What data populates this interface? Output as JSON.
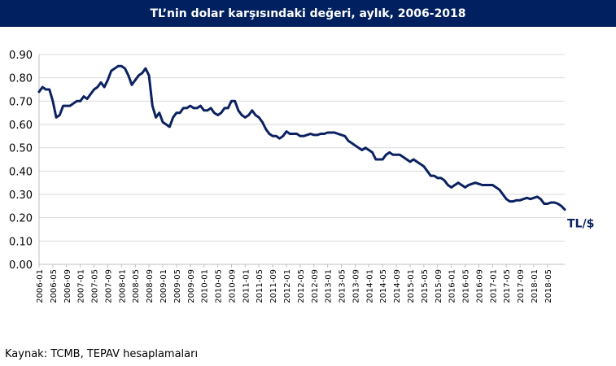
{
  "title": "TL’nin dolar karşısındaki değeri, aylık, 2006-2018",
  "source": "Kaynak: TCMB, TEPAV hesaplamaları",
  "colors": {
    "title_bg": "#002060",
    "line": "#0b2160",
    "grid": "#d9d9d9"
  },
  "chart_data": {
    "type": "line",
    "title": "TL’nin dolar karşısındaki değeri, aylık, 2006-2018",
    "series_label": "TL/$",
    "ylim": [
      0,
      0.9
    ],
    "y_ticks": [
      "0.00",
      "0.10",
      "0.20",
      "0.30",
      "0.40",
      "0.50",
      "0.60",
      "0.70",
      "0.80",
      "0.90"
    ],
    "grid": true,
    "legend": "label at end of line",
    "x_tick_labels": [
      "2006-01",
      "2006-05",
      "2006-09",
      "2007-01",
      "2007-05",
      "2007-09",
      "2008-01",
      "2008-05",
      "2008-09",
      "2009-01",
      "2009-05",
      "2009-09",
      "2010-01",
      "2010-05",
      "2010-09",
      "2011-01",
      "2011-05",
      "2011-09",
      "2012-01",
      "2012-05",
      "2012-09",
      "2013-01",
      "2013-05",
      "2013-09",
      "2014-01",
      "2014-05",
      "2014-09",
      "2015-01",
      "2015-05",
      "2015-09",
      "2016-01",
      "2016-05",
      "2016-09",
      "2017-01",
      "2017-05",
      "2017-09",
      "2018-01",
      "2018-05"
    ],
    "x_start": "2006-01",
    "x_end": "2018-05",
    "values": [
      0.74,
      0.76,
      0.75,
      0.75,
      0.7,
      0.63,
      0.64,
      0.68,
      0.68,
      0.68,
      0.69,
      0.7,
      0.7,
      0.72,
      0.71,
      0.73,
      0.75,
      0.76,
      0.78,
      0.76,
      0.79,
      0.83,
      0.84,
      0.85,
      0.85,
      0.84,
      0.81,
      0.77,
      0.79,
      0.81,
      0.82,
      0.84,
      0.81,
      0.68,
      0.63,
      0.65,
      0.61,
      0.6,
      0.59,
      0.63,
      0.65,
      0.65,
      0.67,
      0.67,
      0.68,
      0.67,
      0.67,
      0.68,
      0.66,
      0.66,
      0.67,
      0.65,
      0.64,
      0.65,
      0.67,
      0.67,
      0.7,
      0.7,
      0.66,
      0.64,
      0.63,
      0.64,
      0.66,
      0.64,
      0.63,
      0.61,
      0.58,
      0.56,
      0.55,
      0.55,
      0.54,
      0.55,
      0.57,
      0.56,
      0.56,
      0.56,
      0.55,
      0.55,
      0.555,
      0.56,
      0.555,
      0.555,
      0.56,
      0.56,
      0.565,
      0.565,
      0.565,
      0.56,
      0.555,
      0.55,
      0.53,
      0.52,
      0.51,
      0.5,
      0.49,
      0.5,
      0.49,
      0.48,
      0.45,
      0.45,
      0.45,
      0.47,
      0.48,
      0.47,
      0.47,
      0.47,
      0.46,
      0.45,
      0.44,
      0.45,
      0.44,
      0.43,
      0.42,
      0.4,
      0.38,
      0.38,
      0.37,
      0.37,
      0.36,
      0.34,
      0.33,
      0.34,
      0.35,
      0.34,
      0.33,
      0.34,
      0.345,
      0.35,
      0.345,
      0.34,
      0.34,
      0.34,
      0.34,
      0.33,
      0.32,
      0.3,
      0.28,
      0.27,
      0.27,
      0.275,
      0.275,
      0.28,
      0.285,
      0.28,
      0.285,
      0.29,
      0.28,
      0.26,
      0.26,
      0.265,
      0.265,
      0.26,
      0.25,
      0.235
    ]
  }
}
